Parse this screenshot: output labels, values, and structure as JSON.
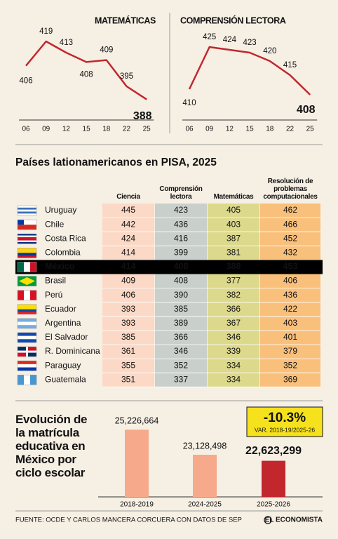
{
  "chart_data": [
    {
      "type": "line",
      "title": "MATEMÁTICAS",
      "categories": [
        "06",
        "09",
        "12",
        "15",
        "18",
        "22",
        "25"
      ],
      "values": [
        406,
        419,
        413,
        408,
        409,
        395,
        388
      ],
      "color": "#c1272d",
      "ylim": [
        380,
        428
      ]
    },
    {
      "type": "line",
      "title": "COMPRENSIÓN LECTORA",
      "categories": [
        "06",
        "09",
        "12",
        "15",
        "18",
        "22",
        "25"
      ],
      "values": [
        410,
        425,
        424,
        423,
        420,
        415,
        408
      ],
      "color": "#c1272d",
      "ylim": [
        401,
        433
      ]
    },
    {
      "type": "bar",
      "title": "Evolución de la matrícula educativa en México por ciclo escolar",
      "categories": [
        "2018-2019",
        "2024-2025",
        "2025-2026"
      ],
      "values": [
        25226664,
        23128498,
        22623299
      ],
      "value_labels": [
        "25,226,664",
        "23,128,498",
        "22,623,299"
      ],
      "colors": [
        "#f6a98b",
        "#f6a98b",
        "#c1272d"
      ],
      "ylim": [
        19600000,
        25300000
      ],
      "annotations": [
        "-10.3%",
        "VAR. 2018-19/2025-26"
      ]
    }
  ],
  "table": {
    "title": "Países lationamericanos en PISA, 2025",
    "columns": [
      "Ciencia",
      "Comprensión lectora",
      "Matemáticas",
      "Resolución de problemas computacionales"
    ],
    "rows": [
      {
        "country": "Uruguay",
        "values": [
          445,
          423,
          405,
          462
        ]
      },
      {
        "country": "Chile",
        "values": [
          442,
          436,
          403,
          466
        ]
      },
      {
        "country": "Costa Rica",
        "values": [
          424,
          416,
          387,
          452
        ]
      },
      {
        "country": "Colombia",
        "values": [
          414,
          399,
          381,
          432
        ]
      },
      {
        "country": "México",
        "values": [
          414,
          408,
          388,
          453
        ]
      },
      {
        "country": "Brasil",
        "values": [
          409,
          408,
          377,
          406
        ]
      },
      {
        "country": "Perú",
        "values": [
          406,
          390,
          382,
          436
        ]
      },
      {
        "country": "Ecuador",
        "values": [
          393,
          385,
          366,
          422
        ]
      },
      {
        "country": "Argentina",
        "values": [
          393,
          389,
          367,
          403
        ]
      },
      {
        "country": "El Salvador",
        "values": [
          385,
          366,
          346,
          401
        ]
      },
      {
        "country": "R. Dominicana",
        "values": [
          361,
          346,
          339,
          379
        ]
      },
      {
        "country": "Paraguay",
        "values": [
          355,
          352,
          334,
          352
        ]
      },
      {
        "country": "Guatemala",
        "values": [
          351,
          337,
          334,
          369
        ]
      }
    ]
  },
  "footer": {
    "source": "FUENTE: OCDE Y CARLOS MANCERA CORCUERA CON DATOS DE SEP",
    "logo": "EL ECONOMISTA"
  }
}
